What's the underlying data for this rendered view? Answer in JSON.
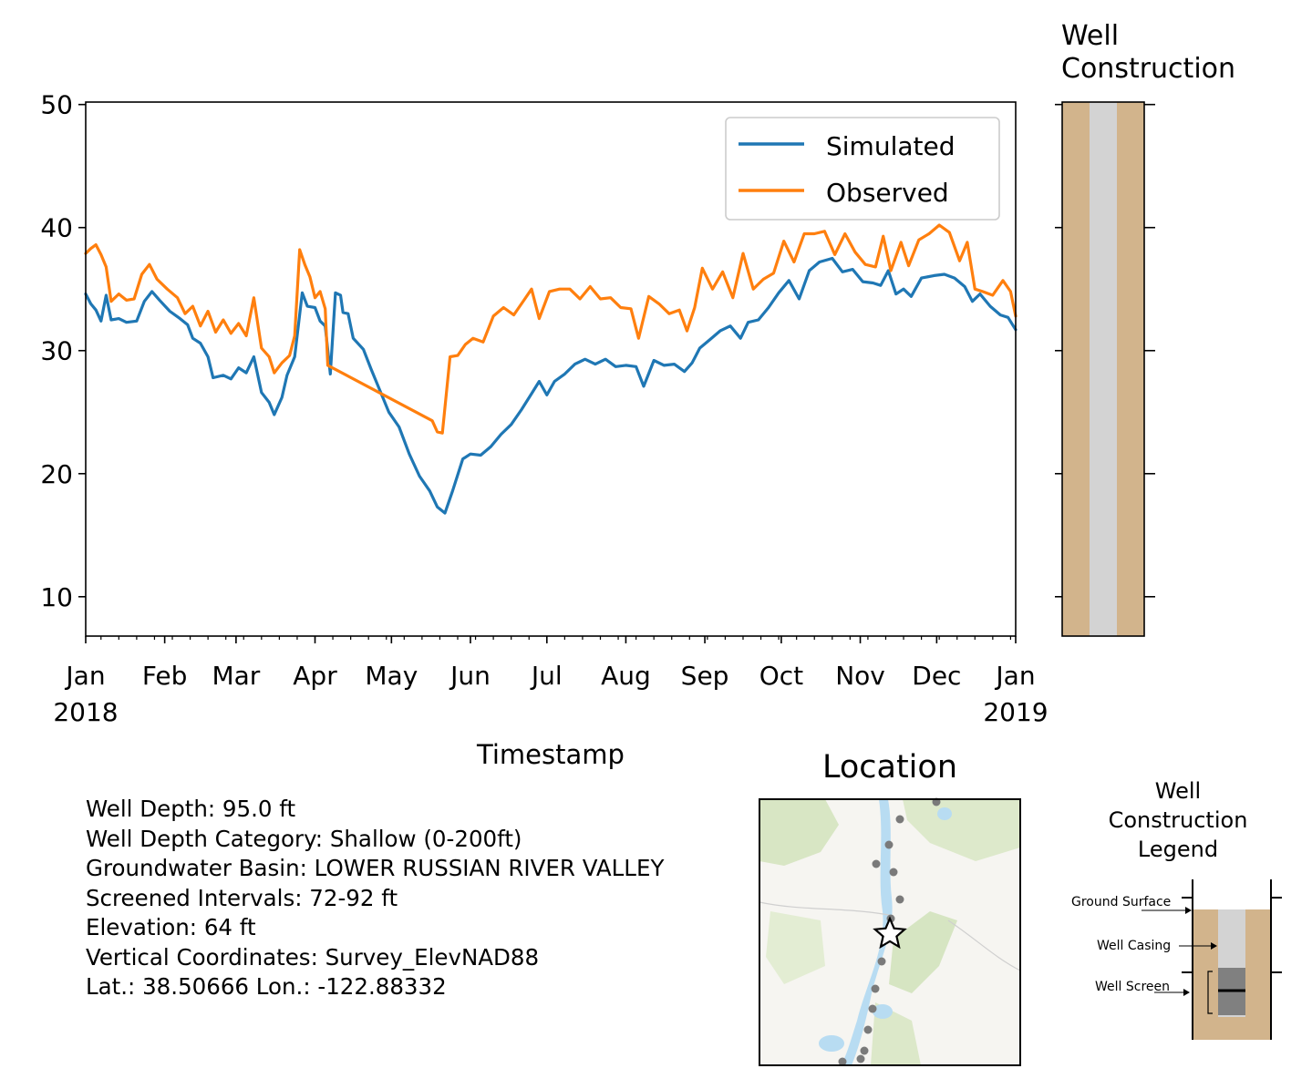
{
  "chart_data": {
    "type": "line",
    "xlabel": "Timestamp",
    "ylabel": "",
    "x_range": [
      "2018-01-01",
      "2019-01-01"
    ],
    "ylim": [
      6.8,
      50.2
    ],
    "y_ticks": [
      10,
      20,
      30,
      40,
      50
    ],
    "x_tick_labels": [
      {
        "date": "2018-01-01",
        "label": "Jan",
        "sub": "2018"
      },
      {
        "date": "2018-02-01",
        "label": "Feb",
        "sub": ""
      },
      {
        "date": "2018-03-01",
        "label": "Mar",
        "sub": ""
      },
      {
        "date": "2018-04-01",
        "label": "Apr",
        "sub": ""
      },
      {
        "date": "2018-05-01",
        "label": "May",
        "sub": ""
      },
      {
        "date": "2018-06-01",
        "label": "Jun",
        "sub": ""
      },
      {
        "date": "2018-07-01",
        "label": "Jul",
        "sub": ""
      },
      {
        "date": "2018-08-01",
        "label": "Aug",
        "sub": ""
      },
      {
        "date": "2018-09-01",
        "label": "Sep",
        "sub": ""
      },
      {
        "date": "2018-10-01",
        "label": "Oct",
        "sub": ""
      },
      {
        "date": "2018-11-01",
        "label": "Nov",
        "sub": ""
      },
      {
        "date": "2018-12-01",
        "label": "Dec",
        "sub": ""
      },
      {
        "date": "2019-01-01",
        "label": "Jan",
        "sub": "2019"
      }
    ],
    "legend_position": "top-right",
    "grid": false,
    "series": [
      {
        "name": "Simulated",
        "color": "#1f77b4",
        "points": [
          [
            "2018-01-01",
            34.6
          ],
          [
            "2018-01-03",
            33.8
          ],
          [
            "2018-01-05",
            33.3
          ],
          [
            "2018-01-07",
            32.4
          ],
          [
            "2018-01-09",
            34.5
          ],
          [
            "2018-01-11",
            32.5
          ],
          [
            "2018-01-14",
            32.6
          ],
          [
            "2018-01-17",
            32.3
          ],
          [
            "2018-01-21",
            32.4
          ],
          [
            "2018-01-24",
            34.0
          ],
          [
            "2018-01-27",
            34.8
          ],
          [
            "2018-01-30",
            34.1
          ],
          [
            "2018-02-03",
            33.2
          ],
          [
            "2018-02-07",
            32.6
          ],
          [
            "2018-02-10",
            32.1
          ],
          [
            "2018-02-12",
            31.0
          ],
          [
            "2018-02-15",
            30.6
          ],
          [
            "2018-02-18",
            29.5
          ],
          [
            "2018-02-20",
            27.8
          ],
          [
            "2018-02-24",
            28.0
          ],
          [
            "2018-02-27",
            27.7
          ],
          [
            "2018-03-02",
            28.6
          ],
          [
            "2018-03-05",
            28.2
          ],
          [
            "2018-03-08",
            29.5
          ],
          [
            "2018-03-11",
            26.6
          ],
          [
            "2018-03-14",
            25.8
          ],
          [
            "2018-03-16",
            24.8
          ],
          [
            "2018-03-19",
            26.2
          ],
          [
            "2018-03-21",
            28.0
          ],
          [
            "2018-03-24",
            29.5
          ],
          [
            "2018-03-27",
            34.7
          ],
          [
            "2018-03-29",
            33.6
          ],
          [
            "2018-04-01",
            33.5
          ],
          [
            "2018-04-03",
            32.4
          ],
          [
            "2018-04-05",
            32.0
          ],
          [
            "2018-04-07",
            28.1
          ],
          [
            "2018-04-09",
            34.7
          ],
          [
            "2018-04-11",
            34.5
          ],
          [
            "2018-04-12",
            33.1
          ],
          [
            "2018-04-14",
            33.0
          ],
          [
            "2018-04-16",
            31.0
          ],
          [
            "2018-04-20",
            30.1
          ],
          [
            "2018-04-23",
            28.5
          ],
          [
            "2018-04-26",
            27.0
          ],
          [
            "2018-04-30",
            25.0
          ],
          [
            "2018-05-04",
            23.8
          ],
          [
            "2018-05-08",
            21.6
          ],
          [
            "2018-05-12",
            19.8
          ],
          [
            "2018-05-16",
            18.6
          ],
          [
            "2018-05-19",
            17.3
          ],
          [
            "2018-05-22",
            16.8
          ],
          [
            "2018-05-25",
            18.6
          ],
          [
            "2018-05-29",
            21.2
          ],
          [
            "2018-06-01",
            21.6
          ],
          [
            "2018-06-05",
            21.5
          ],
          [
            "2018-06-09",
            22.2
          ],
          [
            "2018-06-13",
            23.2
          ],
          [
            "2018-06-17",
            24.0
          ],
          [
            "2018-06-21",
            25.2
          ],
          [
            "2018-06-25",
            26.5
          ],
          [
            "2018-06-28",
            27.5
          ],
          [
            "2018-07-01",
            26.4
          ],
          [
            "2018-07-04",
            27.5
          ],
          [
            "2018-07-08",
            28.1
          ],
          [
            "2018-07-12",
            28.9
          ],
          [
            "2018-07-16",
            29.3
          ],
          [
            "2018-07-20",
            28.9
          ],
          [
            "2018-07-24",
            29.3
          ],
          [
            "2018-07-28",
            28.7
          ],
          [
            "2018-08-01",
            28.8
          ],
          [
            "2018-08-05",
            28.7
          ],
          [
            "2018-08-08",
            27.1
          ],
          [
            "2018-08-12",
            29.2
          ],
          [
            "2018-08-16",
            28.8
          ],
          [
            "2018-08-20",
            28.9
          ],
          [
            "2018-08-24",
            28.3
          ],
          [
            "2018-08-27",
            29.0
          ],
          [
            "2018-08-30",
            30.2
          ],
          [
            "2018-09-03",
            30.9
          ],
          [
            "2018-09-07",
            31.6
          ],
          [
            "2018-09-11",
            32.0
          ],
          [
            "2018-09-15",
            31.0
          ],
          [
            "2018-09-18",
            32.3
          ],
          [
            "2018-09-22",
            32.5
          ],
          [
            "2018-09-26",
            33.5
          ],
          [
            "2018-09-30",
            34.7
          ],
          [
            "2018-10-04",
            35.7
          ],
          [
            "2018-10-08",
            34.2
          ],
          [
            "2018-10-12",
            36.5
          ],
          [
            "2018-10-16",
            37.2
          ],
          [
            "2018-10-21",
            37.5
          ],
          [
            "2018-10-25",
            36.4
          ],
          [
            "2018-10-29",
            36.6
          ],
          [
            "2018-11-02",
            35.6
          ],
          [
            "2018-11-06",
            35.5
          ],
          [
            "2018-11-09",
            35.3
          ],
          [
            "2018-11-12",
            36.5
          ],
          [
            "2018-11-15",
            34.6
          ],
          [
            "2018-11-18",
            35.0
          ],
          [
            "2018-11-21",
            34.4
          ],
          [
            "2018-11-25",
            35.9
          ],
          [
            "2018-11-30",
            36.1
          ],
          [
            "2018-12-04",
            36.2
          ],
          [
            "2018-12-08",
            35.9
          ],
          [
            "2018-12-12",
            35.2
          ],
          [
            "2018-12-15",
            34.0
          ],
          [
            "2018-12-18",
            34.6
          ],
          [
            "2018-12-22",
            33.6
          ],
          [
            "2018-12-26",
            32.9
          ],
          [
            "2018-12-29",
            32.7
          ],
          [
            "2019-01-01",
            31.7
          ]
        ]
      },
      {
        "name": "Observed",
        "color": "#ff7f0e",
        "points": [
          [
            "2018-01-01",
            37.9
          ],
          [
            "2018-01-03",
            38.3
          ],
          [
            "2018-01-05",
            38.6
          ],
          [
            "2018-01-07",
            37.8
          ],
          [
            "2018-01-09",
            36.8
          ],
          [
            "2018-01-11",
            34.0
          ],
          [
            "2018-01-14",
            34.6
          ],
          [
            "2018-01-17",
            34.1
          ],
          [
            "2018-01-20",
            34.2
          ],
          [
            "2018-01-23",
            36.2
          ],
          [
            "2018-01-26",
            37.0
          ],
          [
            "2018-01-29",
            35.8
          ],
          [
            "2018-02-02",
            35.0
          ],
          [
            "2018-02-06",
            34.3
          ],
          [
            "2018-02-09",
            33.0
          ],
          [
            "2018-02-12",
            33.6
          ],
          [
            "2018-02-15",
            32.0
          ],
          [
            "2018-02-18",
            33.2
          ],
          [
            "2018-02-21",
            31.5
          ],
          [
            "2018-02-24",
            32.5
          ],
          [
            "2018-02-27",
            31.4
          ],
          [
            "2018-03-02",
            32.2
          ],
          [
            "2018-03-05",
            31.2
          ],
          [
            "2018-03-08",
            34.3
          ],
          [
            "2018-03-11",
            30.2
          ],
          [
            "2018-03-14",
            29.5
          ],
          [
            "2018-03-16",
            28.2
          ],
          [
            "2018-03-19",
            29.0
          ],
          [
            "2018-03-22",
            29.6
          ],
          [
            "2018-03-24",
            31.2
          ],
          [
            "2018-03-26",
            38.2
          ],
          [
            "2018-03-28",
            37.0
          ],
          [
            "2018-03-30",
            36.0
          ],
          [
            "2018-04-01",
            34.3
          ],
          [
            "2018-04-03",
            34.8
          ],
          [
            "2018-04-05",
            33.4
          ],
          [
            "2018-04-06",
            28.8
          ],
          [
            "2018-05-17",
            24.3
          ],
          [
            "2018-05-19",
            23.4
          ],
          [
            "2018-05-21",
            23.3
          ],
          [
            "2018-05-24",
            29.5
          ],
          [
            "2018-05-27",
            29.6
          ],
          [
            "2018-05-30",
            30.5
          ],
          [
            "2018-06-02",
            31.0
          ],
          [
            "2018-06-06",
            30.7
          ],
          [
            "2018-06-10",
            32.8
          ],
          [
            "2018-06-14",
            33.5
          ],
          [
            "2018-06-18",
            32.9
          ],
          [
            "2018-06-22",
            34.1
          ],
          [
            "2018-06-25",
            35.0
          ],
          [
            "2018-06-28",
            32.6
          ],
          [
            "2018-07-02",
            34.8
          ],
          [
            "2018-07-06",
            35.0
          ],
          [
            "2018-07-10",
            35.0
          ],
          [
            "2018-07-14",
            34.2
          ],
          [
            "2018-07-18",
            35.2
          ],
          [
            "2018-07-22",
            34.2
          ],
          [
            "2018-07-26",
            34.3
          ],
          [
            "2018-07-30",
            33.5
          ],
          [
            "2018-08-03",
            33.4
          ],
          [
            "2018-08-06",
            31.0
          ],
          [
            "2018-08-10",
            34.4
          ],
          [
            "2018-08-14",
            33.8
          ],
          [
            "2018-08-18",
            33.0
          ],
          [
            "2018-08-22",
            33.3
          ],
          [
            "2018-08-25",
            31.6
          ],
          [
            "2018-08-28",
            33.5
          ],
          [
            "2018-08-31",
            36.7
          ],
          [
            "2018-09-04",
            35.0
          ],
          [
            "2018-09-08",
            36.4
          ],
          [
            "2018-09-12",
            34.3
          ],
          [
            "2018-09-16",
            37.9
          ],
          [
            "2018-09-20",
            35.0
          ],
          [
            "2018-09-24",
            35.8
          ],
          [
            "2018-09-28",
            36.3
          ],
          [
            "2018-10-02",
            38.9
          ],
          [
            "2018-10-06",
            37.2
          ],
          [
            "2018-10-10",
            39.5
          ],
          [
            "2018-10-14",
            39.5
          ],
          [
            "2018-10-18",
            39.7
          ],
          [
            "2018-10-22",
            37.8
          ],
          [
            "2018-10-26",
            39.5
          ],
          [
            "2018-10-30",
            38.0
          ],
          [
            "2018-11-03",
            37.0
          ],
          [
            "2018-11-07",
            36.8
          ],
          [
            "2018-11-10",
            39.3
          ],
          [
            "2018-11-13",
            36.5
          ],
          [
            "2018-11-17",
            38.8
          ],
          [
            "2018-11-20",
            36.9
          ],
          [
            "2018-11-24",
            39.0
          ],
          [
            "2018-11-28",
            39.5
          ],
          [
            "2018-12-02",
            40.2
          ],
          [
            "2018-12-06",
            39.6
          ],
          [
            "2018-12-10",
            37.3
          ],
          [
            "2018-12-13",
            38.8
          ],
          [
            "2018-12-16",
            35.0
          ],
          [
            "2018-12-19",
            34.8
          ],
          [
            "2018-12-23",
            34.5
          ],
          [
            "2018-12-27",
            35.7
          ],
          [
            "2018-12-30",
            34.8
          ],
          [
            "2019-01-01",
            32.8
          ]
        ]
      }
    ]
  },
  "well_construction": {
    "title_line1": "Well",
    "title_line2": "Construction",
    "ground_color": "#d2b48c",
    "casing_color": "#d3d3d3"
  },
  "info": {
    "well_depth": "Well Depth: 95.0 ft",
    "depth_category": "Well Depth Category: Shallow (0-200ft)",
    "basin": "Groundwater Basin: LOWER RUSSIAN RIVER VALLEY",
    "screened": "Screened Intervals: 72-92 ft",
    "elevation": "Elevation: 64 ft",
    "vertical": "Vertical Coordinates: Survey_ElevNAD88",
    "latlon": "Lat.: 38.50666 Lon.: -122.88332"
  },
  "location": {
    "title": "Location"
  },
  "legend_panel": {
    "title_line1": "Well",
    "title_line2": "Construction",
    "title_line3": "Legend",
    "ground_surface": "Ground Surface",
    "well_casing": "Well Casing",
    "well_screen": "Well Screen"
  }
}
